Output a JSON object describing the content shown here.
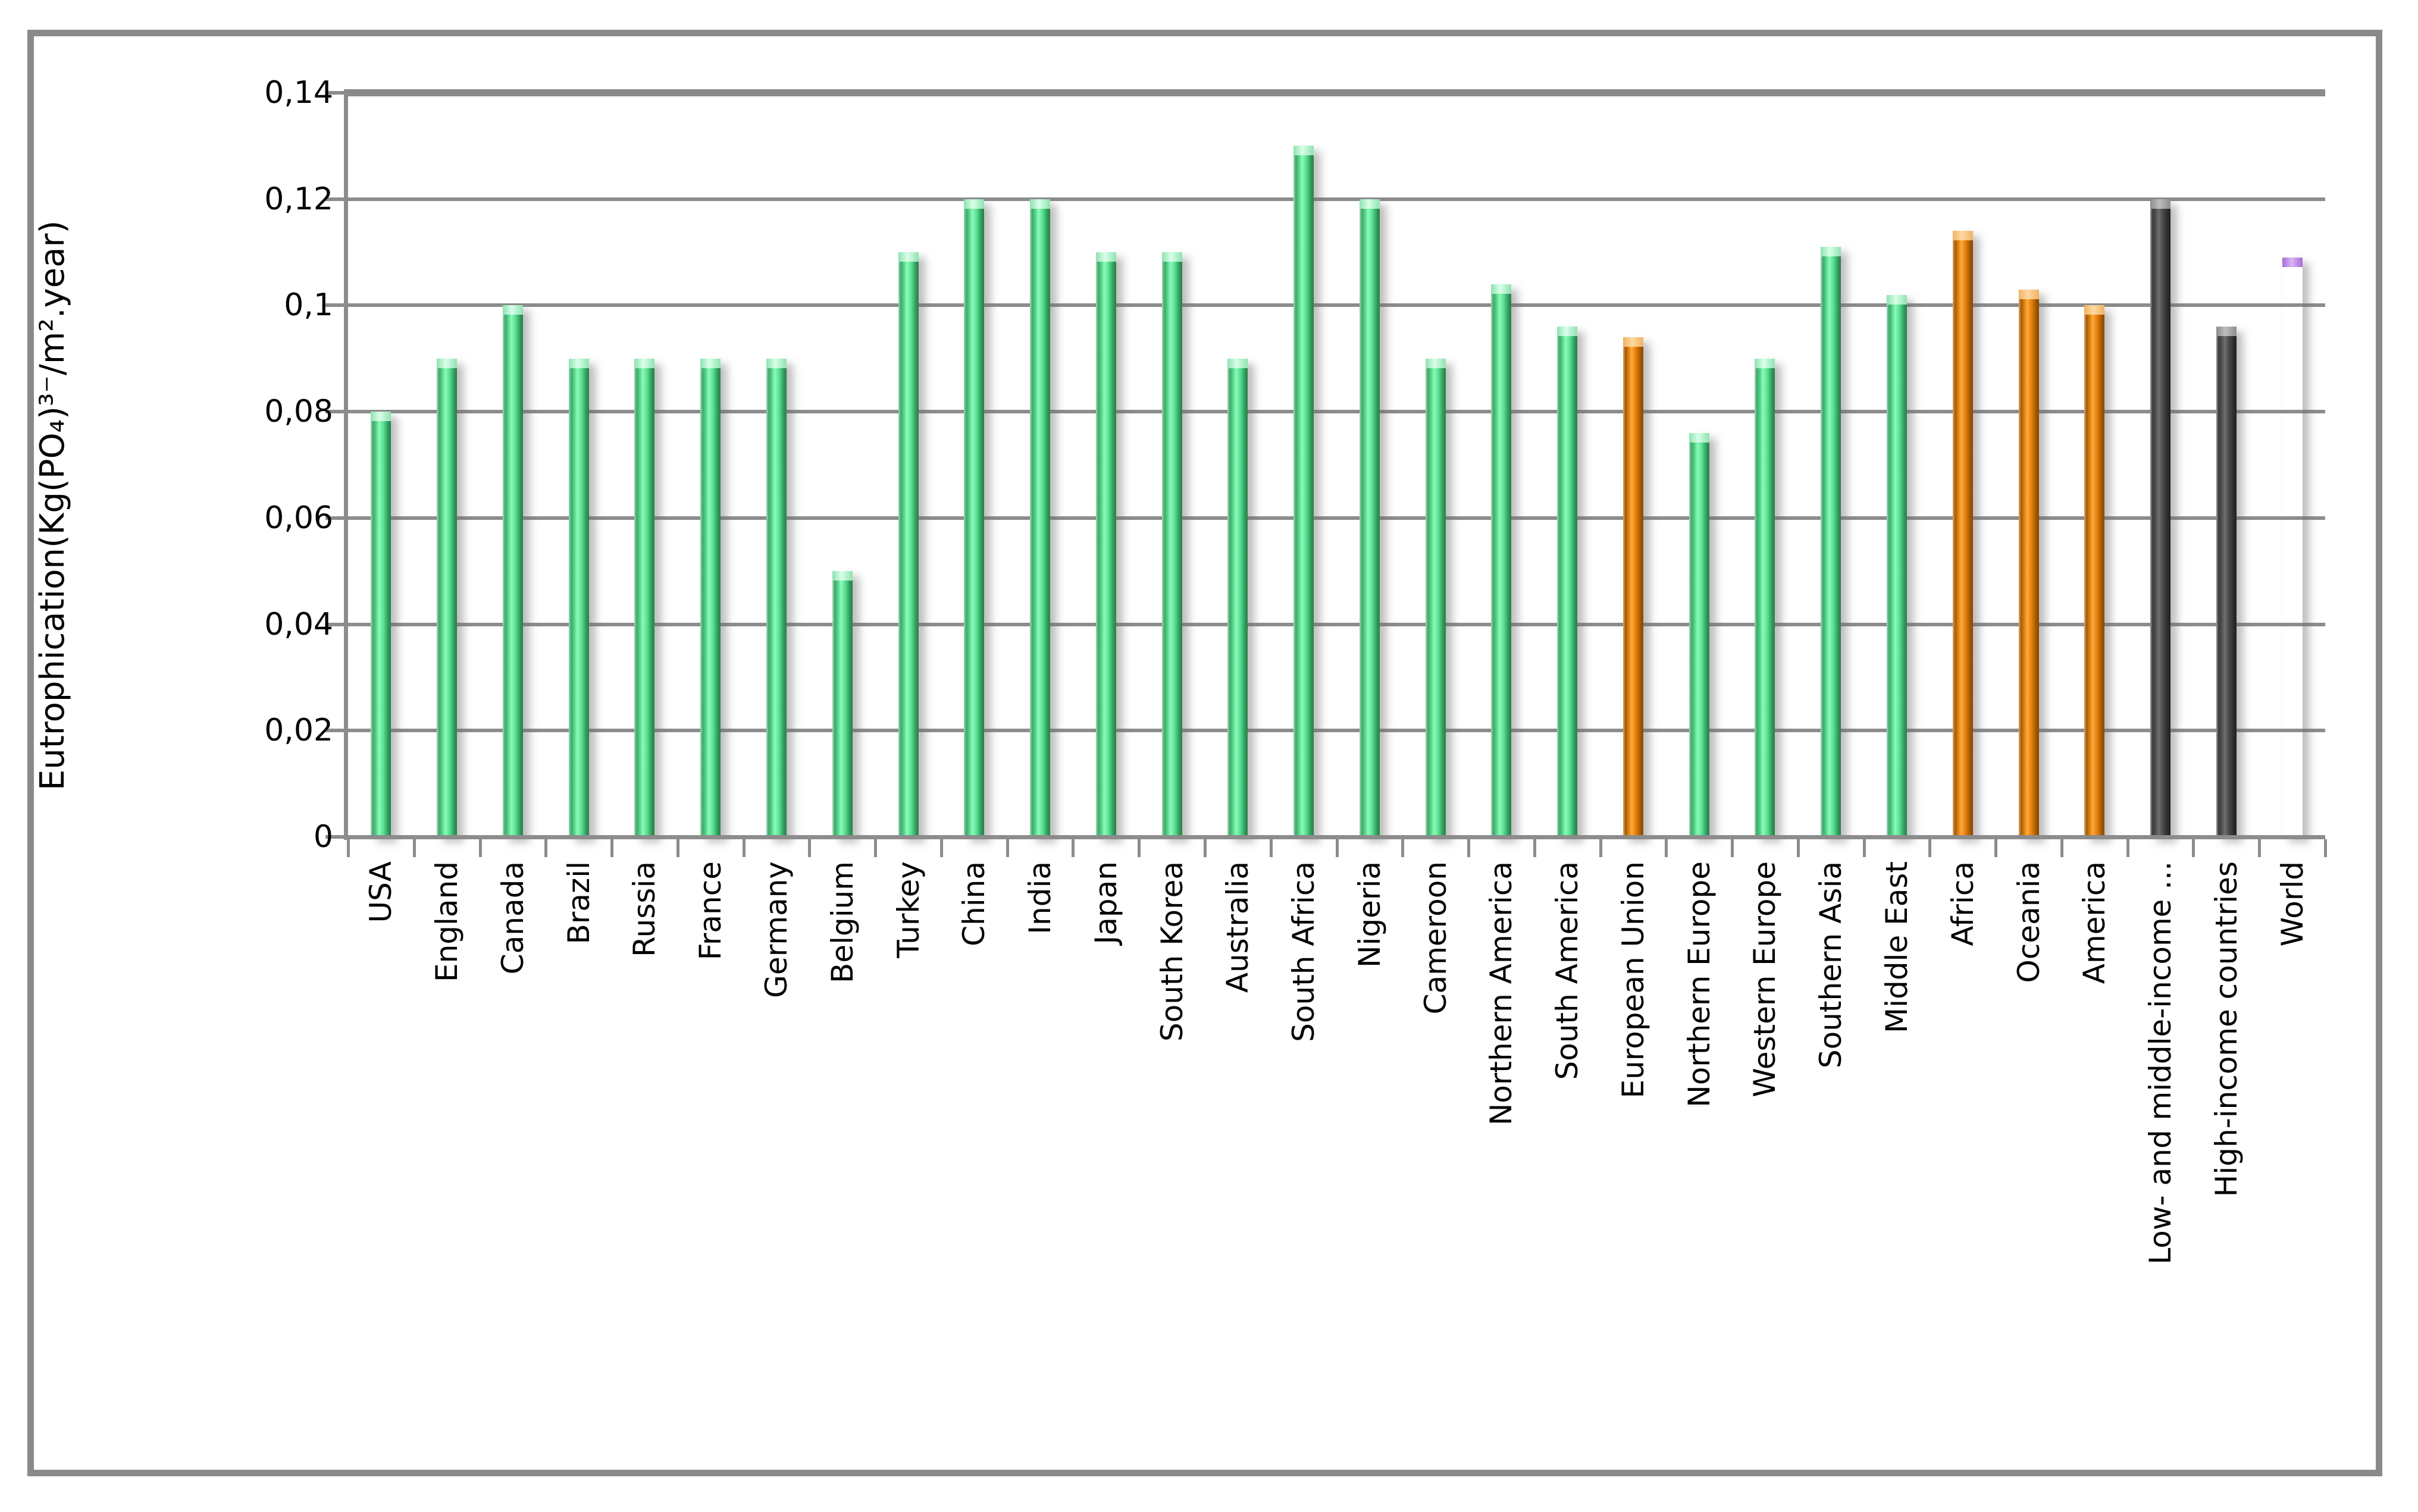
{
  "figure": {
    "background": "#ffffff",
    "frame_border_color": "#8a8a8a"
  },
  "chart_data": {
    "type": "bar",
    "title": "",
    "xlabel": "",
    "ylabel": "Eutrophication(Kg(PO₄)³⁻/m².year)",
    "ylim": [
      0,
      0.14
    ],
    "ytick_interval": 0.02,
    "ytick_labels": [
      "0",
      "0,02",
      "0,04",
      "0,06",
      "0,08",
      "0,1",
      "0,12",
      "0,14"
    ],
    "grid": true,
    "legend": false,
    "categories": [
      "USA",
      "England",
      "Canada",
      "Brazil",
      "Russia",
      "France",
      "Germany",
      "Belgium",
      "Turkey",
      "China",
      "India",
      "Japan",
      "South Korea",
      "Australia",
      "South Africa",
      "Nigeria",
      "Cameroon",
      "Northern America",
      "South America",
      "European Union",
      "Northern Europe",
      "Western Europe",
      "Southern Asia",
      "Middle East",
      "Africa",
      "Oceania",
      "America",
      "Low- and middle-income ...",
      "High-income countries",
      "World"
    ],
    "values": [
      0.08,
      0.09,
      0.1,
      0.09,
      0.09,
      0.09,
      0.09,
      0.05,
      0.11,
      0.12,
      0.12,
      0.11,
      0.11,
      0.09,
      0.13,
      0.12,
      0.09,
      0.104,
      0.096,
      0.094,
      0.076,
      0.09,
      0.111,
      0.102,
      0.114,
      0.103,
      0.1,
      0.12,
      0.096,
      0.109
    ],
    "color_groups": [
      "green",
      "green",
      "green",
      "green",
      "green",
      "green",
      "green",
      "green",
      "green",
      "green",
      "green",
      "green",
      "green",
      "green",
      "green",
      "green",
      "green",
      "green",
      "green",
      "orange",
      "green",
      "green",
      "green",
      "green",
      "orange",
      "orange",
      "orange",
      "dark",
      "dark",
      "purple"
    ],
    "palette": {
      "green": "#5be394",
      "orange": "#e8820e",
      "dark": "#4a4a4a",
      "purple": "#7c35b5",
      "gridline": "#8c8c8c",
      "text": "#000000"
    }
  }
}
